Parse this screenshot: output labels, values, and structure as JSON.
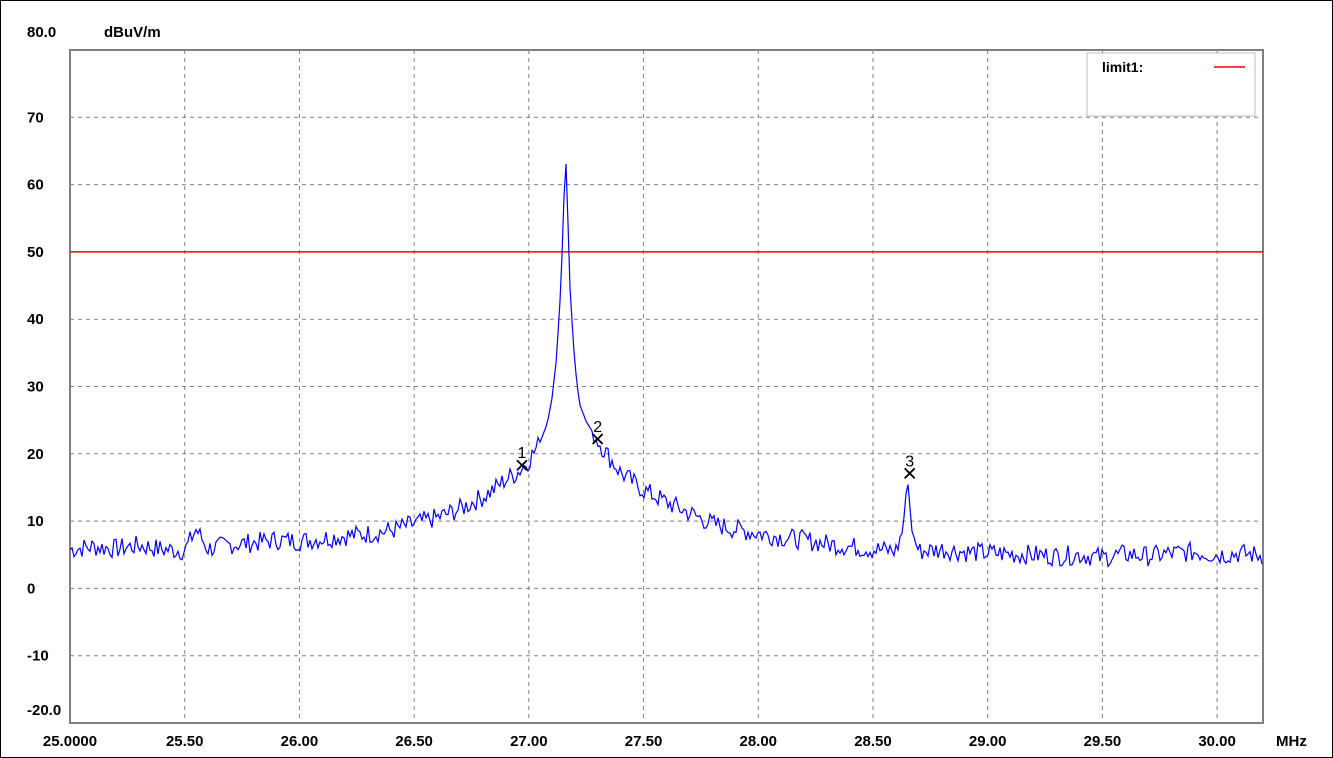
{
  "chart_data": {
    "type": "line",
    "ylabel": "dBuV/m",
    "xlabel": "MHz",
    "xlim": [
      25.0,
      30.2
    ],
    "ylim": [
      -20.0,
      80.0
    ],
    "grid": true,
    "legend_position": "top-right",
    "x_ticks": [
      {
        "value": 25.0,
        "label": "25.0000"
      },
      {
        "value": 25.5,
        "label": "25.50"
      },
      {
        "value": 26.0,
        "label": "26.00"
      },
      {
        "value": 26.5,
        "label": "26.50"
      },
      {
        "value": 27.0,
        "label": "27.00"
      },
      {
        "value": 27.5,
        "label": "27.50"
      },
      {
        "value": 28.0,
        "label": "28.00"
      },
      {
        "value": 28.5,
        "label": "28.50"
      },
      {
        "value": 29.0,
        "label": "29.00"
      },
      {
        "value": 29.5,
        "label": "29.50"
      },
      {
        "value": 30.0,
        "label": "30.00"
      }
    ],
    "y_ticks": [
      {
        "value": 80,
        "label": "80.0"
      },
      {
        "value": 70,
        "label": "70"
      },
      {
        "value": 60,
        "label": "60"
      },
      {
        "value": 50,
        "label": "50"
      },
      {
        "value": 40,
        "label": "40"
      },
      {
        "value": 30,
        "label": "30"
      },
      {
        "value": 20,
        "label": "20"
      },
      {
        "value": 10,
        "label": "10"
      },
      {
        "value": 0,
        "label": "0"
      },
      {
        "value": -10,
        "label": "-10"
      },
      {
        "value": -20,
        "label": "-20.0"
      }
    ],
    "limit": {
      "name": "limit1:",
      "value": 50,
      "color": "#ff0000"
    },
    "trace_color": "#0000ff",
    "series": [
      {
        "x": [
          25.0,
          25.1,
          25.2,
          25.3,
          25.4,
          25.5,
          25.55,
          25.6,
          25.7,
          25.8,
          25.9,
          26.0,
          26.1,
          26.2,
          26.3,
          26.4,
          26.5,
          26.6,
          26.7,
          26.8,
          26.85,
          26.9,
          26.95,
          27.0,
          27.05,
          27.08,
          27.1,
          27.12,
          27.14,
          27.15,
          27.16,
          27.17,
          27.18,
          27.2,
          27.22,
          27.25,
          27.3,
          27.35,
          27.4,
          27.5,
          27.6,
          27.7,
          27.8,
          27.9,
          28.0,
          28.1,
          28.2,
          28.3,
          28.4,
          28.5,
          28.6,
          28.63,
          28.65,
          28.67,
          28.7,
          28.8,
          28.9,
          29.0,
          29.1,
          29.2,
          29.3,
          29.4,
          29.5,
          29.6,
          29.7,
          29.8,
          29.9,
          30.0,
          30.1,
          30.2
        ],
        "y": [
          5.8,
          6.2,
          5.9,
          6.4,
          5.8,
          5.6,
          8.8,
          5.9,
          6.5,
          6.8,
          7.2,
          7.0,
          7.4,
          7.8,
          8.1,
          8.6,
          9.6,
          10.5,
          11.8,
          13.6,
          14.8,
          16.2,
          17.2,
          19.0,
          21.8,
          24.5,
          28.0,
          34.0,
          45.0,
          55.0,
          65.0,
          55.0,
          44.0,
          33.5,
          27.5,
          24.8,
          22.0,
          19.5,
          17.2,
          14.6,
          12.8,
          11.2,
          9.6,
          8.8,
          8.2,
          7.6,
          7.2,
          6.6,
          6.2,
          5.8,
          5.6,
          8.5,
          16.5,
          8.5,
          5.5,
          5.8,
          5.4,
          5.3,
          5.1,
          5.0,
          4.8,
          5.0,
          4.6,
          5.1,
          4.8,
          5.2,
          5.4,
          5.0,
          5.2,
          4.9
        ]
      }
    ],
    "markers": [
      {
        "label": "1",
        "x": 26.97,
        "y": 18.3
      },
      {
        "label": "2",
        "x": 27.3,
        "y": 22.2
      },
      {
        "label": "3",
        "x": 28.66,
        "y": 17.1
      }
    ]
  }
}
